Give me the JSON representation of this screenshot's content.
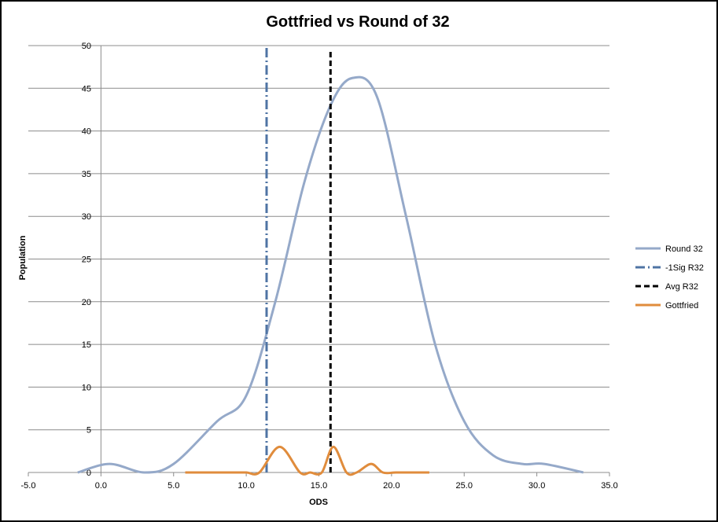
{
  "chart_data": {
    "type": "line",
    "title": "Gottfried vs Round of 32",
    "xlabel": "ODS",
    "ylabel": "Population",
    "xlim": [
      -5.0,
      35.0
    ],
    "ylim": [
      0,
      50
    ],
    "xticks": [
      "-5.0",
      "0.0",
      "5.0",
      "10.0",
      "15.0",
      "20.0",
      "25.0",
      "30.0",
      "35.0"
    ],
    "yticks": [
      "0",
      "5",
      "10",
      "15",
      "20",
      "25",
      "30",
      "35",
      "40",
      "45",
      "50"
    ],
    "grid": "horizontal",
    "legend_position": "right",
    "series": [
      {
        "name": "Round 32",
        "style": "smooth",
        "color": "#95a9c9",
        "x": [
          -1.6,
          0.6,
          3,
          5,
          8,
          10,
          12,
          14,
          15.8,
          17.3,
          19,
          21,
          23,
          25,
          27,
          29,
          30.5,
          33.2
        ],
        "y": [
          0,
          1,
          0,
          1,
          6,
          9,
          20,
          34,
          43,
          46.2,
          44,
          30,
          15,
          6,
          2,
          1,
          1,
          0
        ]
      },
      {
        "name": "-1Sig R32",
        "style": "dashdot",
        "color": "#4f74a4",
        "x": [
          11.4,
          11.4
        ],
        "y": [
          0,
          50
        ]
      },
      {
        "name": "Avg R32",
        "style": "dashed",
        "color": "#000000",
        "x": [
          15.8,
          15.8
        ],
        "y": [
          0,
          49.5
        ]
      },
      {
        "name": "Gottfried",
        "style": "smooth",
        "color": "#e08c3c",
        "x": [
          5.8,
          7,
          9,
          10,
          10.9,
          12.3,
          13.7,
          14.4,
          15.2,
          16,
          16.9,
          17.6,
          18.6,
          19.4,
          20.3,
          21.5,
          22.6
        ],
        "y": [
          0,
          0,
          0,
          0,
          0,
          3,
          0,
          0,
          0,
          3,
          0,
          0,
          1,
          0,
          0,
          0,
          0
        ]
      }
    ]
  }
}
